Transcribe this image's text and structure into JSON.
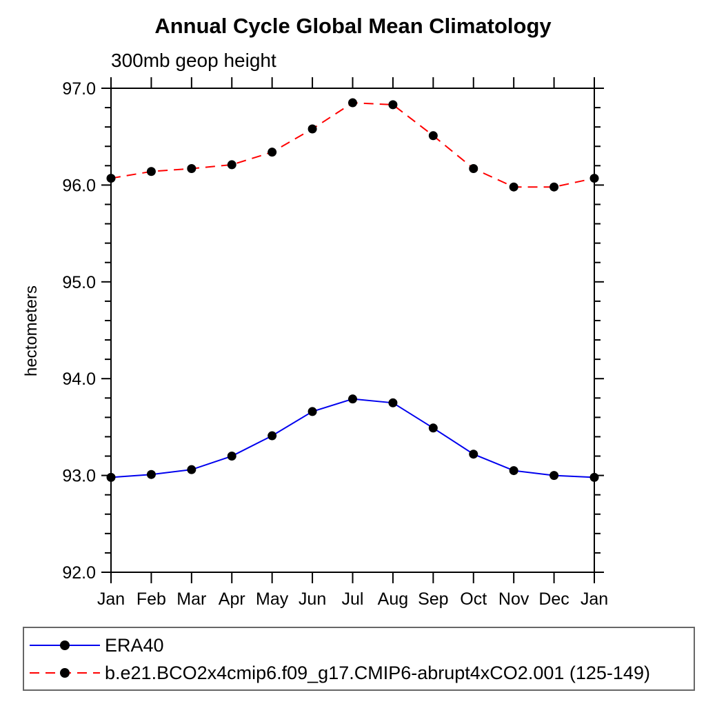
{
  "title": "Annual Cycle Global Mean Climatology",
  "subtitle": "300mb geop height",
  "chart_data": {
    "type": "line",
    "title": "Annual Cycle Global Mean Climatology",
    "subtitle": "300mb geop height",
    "ylabel": "hectometers",
    "xlabel": "",
    "categories": [
      "Jan",
      "Feb",
      "Mar",
      "Apr",
      "May",
      "Jun",
      "Jul",
      "Aug",
      "Sep",
      "Oct",
      "Nov",
      "Dec",
      "Jan"
    ],
    "series": [
      {
        "name": "ERA40",
        "color": "#0000ee",
        "line_style": "solid",
        "marker": "filled-circle",
        "marker_color": "#000000",
        "values": [
          92.98,
          93.01,
          93.06,
          93.2,
          93.41,
          93.66,
          93.79,
          93.75,
          93.49,
          93.22,
          93.05,
          93.0,
          92.98
        ]
      },
      {
        "name": "b.e21.BCO2x4cmip6.f09_g17.CMIP6-abrupt4xCO2.001 (125-149)",
        "color": "#ff0000",
        "line_style": "dashed",
        "marker": "filled-circle",
        "marker_color": "#000000",
        "values": [
          96.07,
          96.14,
          96.17,
          96.21,
          96.34,
          96.58,
          96.85,
          96.83,
          96.51,
          96.17,
          95.98,
          95.98,
          96.07
        ]
      }
    ],
    "ylim": [
      92.0,
      97.0
    ],
    "ytick_step": 1.0,
    "ytick_minor_step": 0.2,
    "ytick_labels": [
      "92.0",
      "93.0",
      "94.0",
      "95.0",
      "96.0",
      "97.0"
    ],
    "grid": false,
    "axis_color": "#000000",
    "legend_position": "bottom-left-box"
  }
}
